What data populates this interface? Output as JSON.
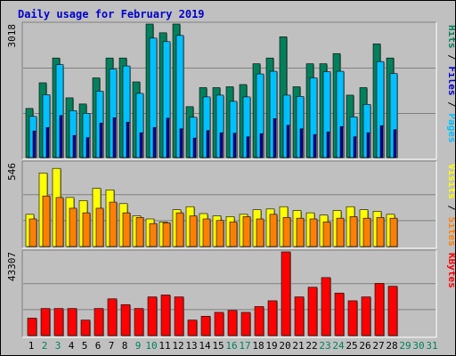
{
  "chart_data": {
    "title": "Daily usage for February 2019",
    "type": "bar",
    "x": [
      "1",
      "2",
      "3",
      "4",
      "5",
      "6",
      "7",
      "8",
      "9",
      "10",
      "11",
      "12",
      "13",
      "14",
      "15",
      "16",
      "17",
      "18",
      "19",
      "20",
      "21",
      "22",
      "23",
      "24",
      "25",
      "26",
      "27",
      "28",
      "29",
      "30",
      "31"
    ],
    "weekend_days": [
      "2",
      "3",
      "9",
      "10",
      "16",
      "17",
      "23",
      "24",
      "30",
      "31"
    ],
    "colors": {
      "hits": "#00805c",
      "files": "#00c0ff",
      "visits": "#ffff00",
      "sites": "#ff8000",
      "kbytes": "#ff0000",
      "title": "#0000cc",
      "weekday_label": "#000000",
      "weekend_label": "#00805c",
      "empty_day_label": "#00805c"
    },
    "panels": [
      {
        "name": "requests",
        "ymax_label": "3018",
        "ymax": 3018,
        "legend": [
          {
            "text": "Hits",
            "color": "#00805c"
          },
          {
            "text": " / ",
            "color": "#000000"
          },
          {
            "text": "Files",
            "color": "#0000cc"
          },
          {
            "text": " / ",
            "color": "#000000"
          },
          {
            "text": "Pages",
            "color": "#00c0ff"
          }
        ],
        "series": [
          {
            "name": "Hits",
            "color": "#00805c",
            "values": [
              1110,
              1690,
              2250,
              1350,
              1210,
              1800,
              2250,
              2250,
              1710,
              3018,
              2820,
              3018,
              1150,
              1580,
              1580,
              1600,
              1650,
              2120,
              2250,
              2730,
              1600,
              2120,
              2120,
              2350,
              1410,
              1580,
              2570,
              2250,
              null,
              null,
              null
            ]
          },
          {
            "name": "Files",
            "color": "#00c0ff",
            "values": [
              930,
              1420,
              2100,
              1060,
              1000,
              1500,
              2000,
              2070,
              1450,
              2700,
              2620,
              2760,
              910,
              1370,
              1410,
              1270,
              1370,
              1890,
              1950,
              1410,
              1380,
              1800,
              1940,
              1950,
              920,
              1200,
              2170,
              1900,
              null,
              null,
              null
            ]
          },
          {
            "name": "Pages",
            "color": "#0000aa",
            "values": [
              600,
              680,
              950,
              500,
              450,
              780,
              900,
              800,
              560,
              680,
              890,
              650,
              440,
              610,
              560,
              550,
              470,
              540,
              880,
              730,
              650,
              520,
              580,
              700,
              470,
              560,
              720,
              630,
              null,
              null,
              null
            ]
          }
        ]
      },
      {
        "name": "visitors",
        "ymax_label": "546",
        "ymax": 546,
        "legend": [
          {
            "text": "Visits",
            "color": "#ffff00"
          },
          {
            "text": " / ",
            "color": "#000000"
          },
          {
            "text": "Sites",
            "color": "#ff8000"
          }
        ],
        "series": [
          {
            "name": "Visits",
            "color": "#ffff00",
            "values": [
              210,
              480,
              510,
              320,
              300,
              380,
              370,
              280,
              200,
              180,
              160,
              240,
              260,
              215,
              200,
              195,
              210,
              240,
              245,
              260,
              235,
              220,
              205,
              235,
              260,
              240,
              230,
              210,
              null,
              null,
              null
            ]
          },
          {
            "name": "Sites",
            "color": "#ff8000",
            "values": [
              180,
              330,
              320,
              250,
              220,
              250,
              290,
              220,
              190,
              150,
              155,
              220,
              200,
              180,
              170,
              160,
              195,
              180,
              210,
              190,
              185,
              180,
              160,
              185,
              195,
              185,
              190,
              185,
              null,
              null,
              null
            ]
          }
        ]
      },
      {
        "name": "traffic",
        "ymax_label": "43307",
        "ymax": 43307,
        "legend": [
          {
            "text": "KBytes",
            "color": "#ff0000"
          }
        ],
        "series": [
          {
            "name": "KBytes",
            "color": "#ff0000",
            "values": [
              9000,
              14000,
              14000,
              14000,
              8000,
              14000,
              19000,
              16000,
              14000,
              20000,
              21000,
              20000,
              8000,
              10000,
              12000,
              13000,
              12000,
              15000,
              18000,
              43307,
              20000,
              25000,
              30000,
              22000,
              18000,
              20000,
              27000,
              25500,
              null,
              null,
              null
            ]
          }
        ]
      }
    ]
  }
}
